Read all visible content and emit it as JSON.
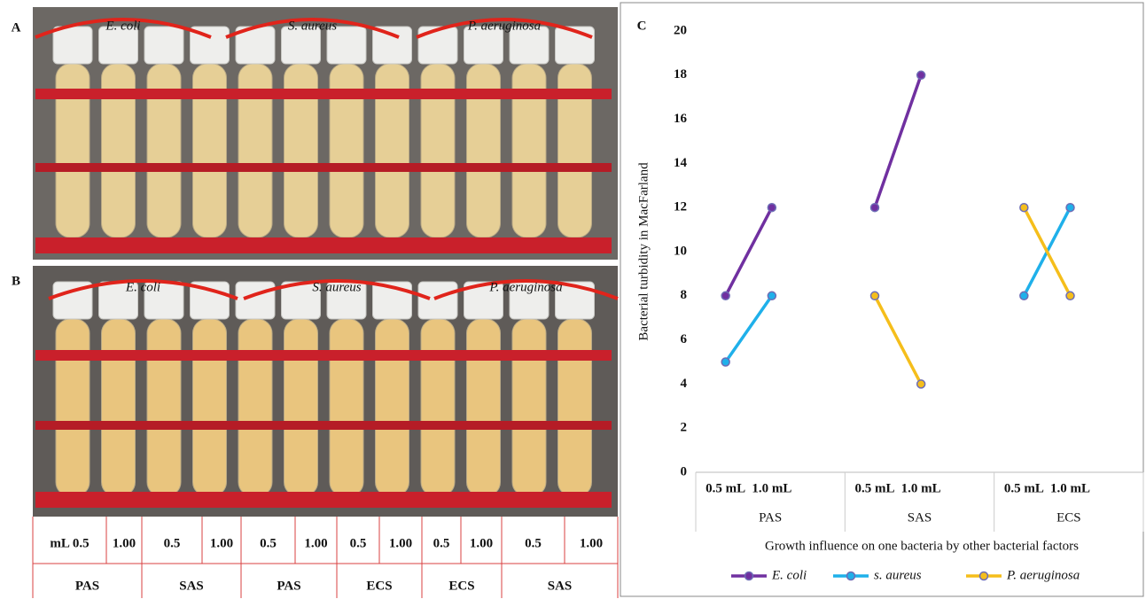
{
  "panel_labels": [
    "A",
    "B",
    "C"
  ],
  "photo_a": {
    "labels": [
      "E. coli",
      "S. aureus",
      "P. aeruginosa"
    ]
  },
  "photo_b": {
    "labels": [
      "E. coli",
      "S. aureus",
      "P. aeruginosa"
    ],
    "table": {
      "volumes": [
        "mL 0.5",
        "1.00",
        "0.5",
        "1.00",
        "0.5",
        "1.00",
        "0.5",
        "1.00",
        "0.5",
        "1.00",
        "0.5",
        "1.00"
      ],
      "groups": [
        "PAS",
        "SAS",
        "PAS",
        "ECS",
        "ECS",
        "SAS"
      ]
    }
  },
  "chart_data": {
    "type": "line",
    "ylabel": "Bacterial turbidity in MacFarland",
    "xlabel": "Growth influence on  one bacteria by other bacterial factors",
    "categories": [
      "0.5 mL",
      "1.0 mL",
      "0.5 mL",
      "1.0 mL",
      "0.5 mL",
      "1.0 mL"
    ],
    "groups": [
      "PAS",
      "SAS",
      "ECS"
    ],
    "series": [
      {
        "name": "E. coli",
        "color": "#7030a0",
        "values": [
          8,
          12,
          12,
          18,
          null,
          null
        ]
      },
      {
        "name": "s. aureus",
        "color": "#1fb0ea",
        "values": [
          5,
          8,
          null,
          null,
          8,
          12
        ]
      },
      {
        "name": "P. aeruginosa",
        "color": "#f5be1b",
        "values": [
          null,
          null,
          8,
          4,
          12,
          8
        ]
      }
    ],
    "ylim": [
      0,
      20
    ],
    "yticks": [
      0,
      2,
      4,
      6,
      8,
      10,
      12,
      14,
      16,
      18,
      20
    ],
    "grid": false,
    "legend": "bottom"
  }
}
